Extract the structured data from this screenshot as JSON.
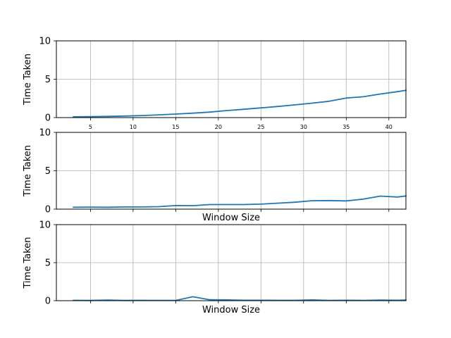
{
  "chart_data": [
    {
      "type": "line",
      "xlabel": "",
      "ylabel": "Time Taken",
      "xlim": [
        1,
        42
      ],
      "ylim": [
        0,
        10
      ],
      "yticks": [
        0,
        5,
        10
      ],
      "xticks": [
        5,
        10,
        15,
        20,
        25,
        30,
        35,
        40
      ],
      "show_xtick_labels": true,
      "grid": true,
      "series": [
        {
          "color": "#1f77b4",
          "x": [
            3,
            5,
            7,
            9,
            11,
            13,
            15,
            17,
            19,
            21,
            23,
            25,
            27,
            29,
            31,
            33,
            35,
            37,
            39,
            41,
            42
          ],
          "y": [
            0.1,
            0.13,
            0.16,
            0.2,
            0.27,
            0.36,
            0.46,
            0.58,
            0.72,
            0.92,
            1.08,
            1.27,
            1.45,
            1.66,
            1.88,
            2.13,
            2.55,
            2.72,
            3.07,
            3.38,
            3.55
          ]
        }
      ]
    },
    {
      "type": "line",
      "xlabel": "Window Size",
      "ylabel": "Time Taken",
      "xlim": [
        1,
        42
      ],
      "ylim": [
        0,
        10
      ],
      "yticks": [
        0,
        5,
        10
      ],
      "xticks": [
        5,
        10,
        15,
        20,
        25,
        30,
        35,
        40
      ],
      "show_xtick_labels": false,
      "grid": true,
      "series": [
        {
          "color": "#1f77b4",
          "x": [
            3,
            5,
            7,
            9,
            11,
            13,
            15,
            17,
            19,
            21,
            23,
            25,
            27,
            29,
            31,
            33,
            35,
            37,
            39,
            41,
            42
          ],
          "y": [
            0.25,
            0.27,
            0.25,
            0.28,
            0.28,
            0.32,
            0.47,
            0.45,
            0.6,
            0.6,
            0.6,
            0.65,
            0.78,
            0.9,
            1.1,
            1.12,
            1.07,
            1.3,
            1.7,
            1.58,
            1.72
          ]
        }
      ]
    },
    {
      "type": "line",
      "xlabel": "Window Size",
      "ylabel": "Time Taken",
      "xlim": [
        1,
        42
      ],
      "ylim": [
        0,
        10
      ],
      "yticks": [
        0,
        5,
        10
      ],
      "xticks": [
        5,
        10,
        15,
        20,
        25,
        30,
        35,
        40
      ],
      "show_xtick_labels": false,
      "grid": true,
      "series": [
        {
          "color": "#1f77b4",
          "x": [
            3,
            5,
            7,
            9,
            11,
            13,
            15,
            17,
            19,
            21,
            23,
            25,
            27,
            29,
            31,
            33,
            35,
            37,
            39,
            41,
            42
          ],
          "y": [
            0.05,
            0.03,
            0.08,
            0.03,
            0.05,
            0.04,
            0.04,
            0.52,
            0.12,
            0.1,
            0.06,
            0.06,
            0.05,
            0.05,
            0.1,
            0.04,
            0.06,
            0.04,
            0.08,
            0.06,
            0.08
          ]
        }
      ]
    }
  ]
}
